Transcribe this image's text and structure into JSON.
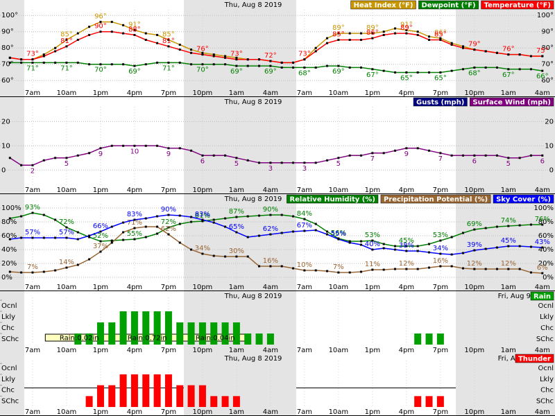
{
  "categories": [
    null,
    null,
    "7am",
    null,
    null,
    "10am",
    null,
    null,
    "1pm",
    null,
    null,
    "4pm",
    null,
    null,
    "7pm",
    null,
    null,
    "10pm",
    null,
    null,
    "1am",
    null,
    null,
    "4am",
    null,
    null,
    "7am",
    null,
    null,
    "10am",
    null,
    null,
    "1pm",
    null,
    null,
    "4pm",
    null,
    null,
    "7pm",
    null,
    null,
    "10pm",
    null,
    null,
    "1am",
    null,
    null,
    "4am"
  ],
  "chart_data": [
    {
      "type": "line",
      "date": "Thu, Aug 8 2019",
      "ylim": [
        55,
        103.5
      ],
      "yticks": [
        {
          "value": 60,
          "label": "60°"
        },
        {
          "value": 70,
          "label": "70°"
        },
        {
          "value": 80,
          "label": "80°"
        },
        {
          "value": 90,
          "label": "90°"
        },
        {
          "value": 100,
          "label": "100°"
        }
      ],
      "series": [
        {
          "name": "Heat Index (°F)",
          "color": "#c89600",
          "label_side": "above",
          "values": [
            74,
            73,
            73,
            76,
            80,
            85,
            89,
            93,
            96,
            96,
            94,
            91,
            89,
            88,
            85,
            82,
            79,
            77,
            76,
            75,
            74,
            73,
            73,
            72,
            71,
            71,
            73,
            80,
            86,
            89,
            89,
            89,
            89,
            90,
            92,
            91,
            90,
            87,
            86,
            83,
            81,
            79,
            78,
            77,
            76,
            76,
            75,
            75
          ],
          "value_labels": [
            null,
            null,
            null,
            null,
            null,
            "85°",
            null,
            null,
            "96°",
            null,
            null,
            "91°",
            null,
            null,
            "85°",
            null,
            null,
            null,
            null,
            null,
            null,
            null,
            null,
            null,
            null,
            null,
            null,
            null,
            null,
            "89°",
            null,
            null,
            "89°",
            null,
            null,
            "91°",
            null,
            null,
            "86°",
            null,
            null,
            null,
            null,
            null,
            null,
            null,
            null,
            null
          ]
        },
        {
          "name": "Dewpoint (°F)",
          "color": "#008000",
          "label_side": "below",
          "values": [
            71,
            71,
            71,
            71,
            71,
            71,
            71,
            70,
            70,
            70,
            70,
            69,
            70,
            71,
            71,
            71,
            70,
            70,
            70,
            70,
            69,
            69,
            69,
            69,
            68,
            68,
            68,
            68,
            69,
            69,
            68,
            68,
            67,
            66,
            65,
            65,
            65,
            65,
            65,
            66,
            67,
            68,
            68,
            68,
            67,
            67,
            67,
            66
          ],
          "value_labels": [
            null,
            null,
            "71°",
            null,
            null,
            "71°",
            null,
            null,
            "70°",
            null,
            null,
            "69°",
            null,
            null,
            "71°",
            null,
            null,
            "70°",
            null,
            null,
            "69°",
            null,
            null,
            "69°",
            null,
            null,
            "68°",
            null,
            null,
            "69°",
            null,
            null,
            "67°",
            null,
            null,
            "65°",
            null,
            null,
            "65°",
            null,
            null,
            "68°",
            null,
            null,
            "67°",
            null,
            null,
            "66°"
          ]
        },
        {
          "name": "Temperature (°F)",
          "color": "#ff0000",
          "label_side": "above",
          "values": [
            74,
            73,
            73,
            75,
            78,
            81,
            85,
            88,
            90,
            90,
            89,
            88,
            85,
            83,
            81,
            79,
            77,
            76,
            75,
            74,
            73,
            73,
            73,
            72,
            71,
            71,
            73,
            78,
            83,
            85,
            85,
            85,
            86,
            88,
            89,
            89,
            88,
            85,
            85,
            82,
            80,
            79,
            78,
            77,
            76,
            76,
            75,
            75
          ],
          "value_labels": [
            null,
            null,
            "73°",
            null,
            null,
            "81°",
            null,
            null,
            "90°",
            null,
            null,
            "88°",
            null,
            null,
            "81°",
            null,
            null,
            "76°",
            null,
            null,
            "73°",
            null,
            null,
            "72°",
            null,
            null,
            "73°",
            null,
            null,
            "85°",
            null,
            null,
            "86°",
            null,
            null,
            "89°",
            null,
            null,
            "85°",
            null,
            null,
            "79°",
            null,
            null,
            "76°",
            null,
            null,
            "75°"
          ]
        }
      ]
    },
    {
      "type": "line",
      "date": "Thu, Aug 8 2019",
      "ylim": [
        -6.5,
        26.1
      ],
      "yticks": [
        0,
        10,
        20
      ],
      "series": [
        {
          "name": "Gusts (mph)",
          "color": "#000080",
          "values": null
        },
        {
          "name": "Surface Wind (mph)",
          "color": "#800080",
          "label_side": "below",
          "values": [
            5,
            2,
            2,
            4,
            5,
            5,
            6,
            7,
            9,
            10,
            10,
            10,
            10,
            10,
            9,
            9,
            8,
            6,
            6,
            6,
            5,
            4,
            3,
            3,
            3,
            3,
            3,
            3,
            4,
            5,
            6,
            6,
            7,
            7,
            8,
            9,
            9,
            8,
            7,
            6,
            6,
            6,
            6,
            6,
            5,
            5,
            6,
            6
          ]
        }
      ]
    },
    {
      "type": "line",
      "date": "Thu, Aug 8 2019",
      "ylim": [
        -8,
        106
      ],
      "yticks": [
        {
          "value": 0,
          "label": "0%"
        },
        {
          "value": 20,
          "label": "20%"
        },
        {
          "value": 40,
          "label": "40%"
        },
        {
          "value": 60,
          "label": "60%"
        },
        {
          "value": 80,
          "label": "80%"
        },
        {
          "value": 100,
          "label": "100%"
        }
      ],
      "series": [
        {
          "name": "Relative Humidity (%)",
          "color": "#008000",
          "label_side": "above",
          "values": [
            85,
            88,
            93,
            90,
            83,
            72,
            65,
            58,
            52,
            53,
            54,
            55,
            58,
            63,
            72,
            77,
            80,
            81,
            83,
            85,
            87,
            88,
            89,
            90,
            90,
            88,
            84,
            77,
            66,
            56,
            52,
            52,
            53,
            48,
            45,
            45,
            45,
            48,
            53,
            58,
            64,
            69,
            71,
            73,
            74,
            75,
            76,
            76
          ],
          "value_labels": [
            null,
            null,
            "93%",
            null,
            null,
            "72%",
            null,
            null,
            "52%",
            null,
            null,
            "55%",
            null,
            null,
            "72%",
            null,
            null,
            "81%",
            null,
            null,
            "87%",
            null,
            null,
            "90%",
            null,
            null,
            "84%",
            null,
            null,
            "56%",
            null,
            null,
            "53%",
            null,
            null,
            "45%",
            null,
            null,
            "53%",
            null,
            null,
            "69%",
            null,
            null,
            "74%",
            null,
            null,
            "76%"
          ]
        },
        {
          "name": "Precipitation Potential (%)",
          "color": "#996633",
          "label_side": "above",
          "values": [
            8,
            7,
            7,
            8,
            10,
            14,
            18,
            26,
            37,
            50,
            65,
            71,
            73,
            73,
            62,
            50,
            40,
            34,
            31,
            30,
            30,
            30,
            16,
            16,
            16,
            13,
            10,
            10,
            9,
            7,
            7,
            8,
            11,
            11,
            12,
            12,
            12,
            14,
            16,
            16,
            13,
            12,
            12,
            12,
            12,
            12,
            7,
            6
          ],
          "value_labels": [
            null,
            null,
            "7%",
            null,
            null,
            "14%",
            null,
            null,
            "37%",
            null,
            null,
            "71%",
            null,
            null,
            "62%",
            null,
            null,
            "34%",
            null,
            null,
            "30%",
            null,
            null,
            "16%",
            null,
            null,
            "10%",
            null,
            null,
            "7%",
            null,
            null,
            "11%",
            null,
            null,
            "12%",
            null,
            null,
            "16%",
            null,
            null,
            "12%",
            null,
            null,
            "12%",
            null,
            null,
            "6%"
          ]
        },
        {
          "name": "Sky Cover (%)",
          "color": "#0000ff",
          "label_side": "above",
          "values": [
            55,
            57,
            57,
            57,
            57,
            57,
            55,
            60,
            66,
            73,
            79,
            83,
            85,
            88,
            90,
            89,
            87,
            83,
            79,
            73,
            65,
            58,
            60,
            62,
            64,
            66,
            67,
            68,
            62,
            55,
            50,
            47,
            40,
            42,
            40,
            38,
            38,
            36,
            34,
            33,
            35,
            39,
            41,
            43,
            45,
            45,
            44,
            43
          ],
          "value_labels": [
            null,
            null,
            "57%",
            null,
            null,
            "57%",
            null,
            null,
            "66%",
            null,
            null,
            "83%",
            null,
            null,
            "90%",
            null,
            null,
            "83%",
            null,
            null,
            "65%",
            null,
            null,
            "62%",
            null,
            null,
            "67%",
            null,
            null,
            "55%",
            null,
            null,
            "40%",
            null,
            null,
            "38%",
            null,
            null,
            "34%",
            null,
            null,
            "39%",
            null,
            null,
            "45%",
            null,
            null,
            "43%"
          ]
        }
      ]
    },
    {
      "type": "bar",
      "date": "Thu, Aug 8 2019",
      "date2": "Fri, Aug 9",
      "ylim": [
        0,
        4.25
      ],
      "yticks": [
        {
          "value": 1,
          "label": "SChc"
        },
        {
          "value": 2,
          "label": "Chc"
        },
        {
          "value": 3,
          "label": "Lkly"
        },
        {
          "value": 4,
          "label": "Ocnl"
        }
      ],
      "annotations": [
        "Rain:0.02in",
        "Rain:0.72in",
        "Rain:0.04in"
      ],
      "series": [
        {
          "name": "Rain",
          "color": "#00a000",
          "values": [
            0,
            0,
            0,
            0,
            0,
            0,
            1,
            1,
            2,
            2,
            3,
            3,
            3,
            3,
            3,
            2,
            2,
            2,
            2,
            2,
            2,
            1,
            1,
            1,
            0,
            0,
            0,
            0,
            0,
            0,
            0,
            0,
            0,
            0,
            0,
            0,
            1,
            1,
            1,
            0,
            0,
            0,
            0,
            0,
            0,
            0,
            0,
            0
          ]
        }
      ]
    },
    {
      "type": "bar",
      "date": "Thu, Aug 8 2019",
      "date2": "Fri, Aug 9",
      "ylim": [
        0,
        4.25
      ],
      "yticks": [
        {
          "value": 1,
          "label": "SChc"
        },
        {
          "value": 2,
          "label": "Chc"
        },
        {
          "value": 3,
          "label": "Lkly"
        },
        {
          "value": 4,
          "label": "Ocnl"
        }
      ],
      "series": [
        {
          "name": "Thunder",
          "color": "#ff0000",
          "values": [
            0,
            0,
            0,
            0,
            0,
            0,
            0,
            1,
            2,
            2,
            3,
            3,
            3,
            3,
            3,
            2,
            2,
            2,
            1,
            1,
            1,
            0,
            0,
            0,
            0,
            0,
            0,
            0,
            0,
            0,
            0,
            0,
            0,
            0,
            0,
            0,
            1,
            1,
            1,
            0,
            0,
            0,
            0,
            0,
            0,
            0,
            0,
            0
          ]
        }
      ]
    }
  ]
}
